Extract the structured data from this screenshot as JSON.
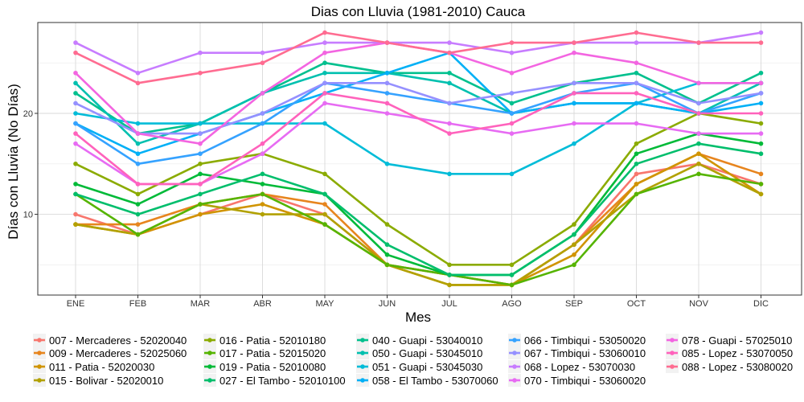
{
  "chart_data": {
    "type": "line",
    "title": "Dias con Lluvia (1981-2010)  Cauca",
    "xlabel": "Mes",
    "ylabel": "Días con Lluvia (No Días)",
    "categories": [
      "ENE",
      "FEB",
      "MAR",
      "ABR",
      "MAY",
      "JUN",
      "JUL",
      "AGO",
      "SEP",
      "OCT",
      "NOV",
      "DIC"
    ],
    "y_ticks": [
      10,
      20
    ],
    "ylim": [
      2,
      29
    ],
    "grid": true,
    "legend_position": "bottom",
    "series": [
      {
        "name": "007 - Mercaderes - 52020040",
        "color": "#F8766D",
        "values": [
          10,
          8,
          10,
          12,
          10,
          5,
          4,
          3,
          7,
          14,
          15,
          13
        ]
      },
      {
        "name": "009 - Mercaderes - 52025060",
        "color": "#E7851E",
        "values": [
          9,
          9,
          11,
          12,
          11,
          5,
          4,
          3,
          7,
          13,
          16,
          14
        ]
      },
      {
        "name": "011 - Patia - 52020030",
        "color": "#D09400",
        "values": [
          9,
          8,
          10,
          11,
          9,
          5,
          3,
          3,
          6,
          13,
          16,
          12
        ]
      },
      {
        "name": "015 - Bolivar - 52020010",
        "color": "#B2A100",
        "values": [
          9,
          8,
          11,
          10,
          10,
          5,
          3,
          3,
          7,
          12,
          15,
          12
        ]
      },
      {
        "name": "016 - Patia - 52010180",
        "color": "#8BAB00",
        "values": [
          15,
          12,
          15,
          16,
          14,
          9,
          5,
          5,
          9,
          17,
          20,
          19
        ]
      },
      {
        "name": "017 - Patia - 52015020",
        "color": "#55B400",
        "values": [
          12,
          8,
          11,
          12,
          9,
          5,
          4,
          3,
          5,
          12,
          14,
          13
        ]
      },
      {
        "name": "019 - Patia - 52010080",
        "color": "#00BA38",
        "values": [
          13,
          11,
          14,
          13,
          12,
          6,
          4,
          4,
          8,
          16,
          18,
          17
        ]
      },
      {
        "name": "027 - El Tambo - 52010100",
        "color": "#00BE6C",
        "values": [
          12,
          10,
          12,
          14,
          12,
          7,
          4,
          4,
          8,
          15,
          17,
          16
        ]
      },
      {
        "name": "040 - Guapi - 53040010",
        "color": "#00C08E",
        "values": [
          22,
          18,
          19,
          22,
          25,
          24,
          24,
          21,
          23,
          24,
          21,
          24
        ]
      },
      {
        "name": "050 - Guapi - 53045010",
        "color": "#00C0AF",
        "values": [
          23,
          17,
          19,
          22,
          24,
          24,
          23,
          20,
          21,
          21,
          20,
          23
        ]
      },
      {
        "name": "051 - Guapi - 53045030",
        "color": "#00BCD8",
        "values": [
          20,
          19,
          19,
          19,
          19,
          15,
          14,
          14,
          17,
          21,
          23,
          23
        ]
      },
      {
        "name": "058 - El Tambo - 53070060",
        "color": "#00B0F6",
        "values": [
          19,
          16,
          18,
          20,
          22,
          24,
          26,
          20,
          21,
          21,
          20,
          21
        ]
      },
      {
        "name": "066 - Timbiqui - 53050020",
        "color": "#35A2FF",
        "values": [
          19,
          15,
          16,
          19,
          23,
          22,
          21,
          20,
          22,
          23,
          20,
          22
        ]
      },
      {
        "name": "067 - Timbiqui - 53060010",
        "color": "#9590FF",
        "values": [
          21,
          18,
          18,
          20,
          23,
          23,
          21,
          22,
          23,
          23,
          21,
          22
        ]
      },
      {
        "name": "068 - Lopez - 53070030",
        "color": "#C77CFF",
        "values": [
          27,
          24,
          26,
          26,
          27,
          27,
          27,
          26,
          27,
          27,
          27,
          28
        ]
      },
      {
        "name": "070 - Timbiqui - 53060020",
        "color": "#E76BF3",
        "values": [
          17,
          13,
          13,
          16,
          21,
          20,
          19,
          18,
          19,
          19,
          18,
          18
        ]
      },
      {
        "name": "078 - Guapi - 57025010",
        "color": "#F365E1",
        "values": [
          24,
          18,
          17,
          22,
          26,
          27,
          26,
          24,
          26,
          25,
          23,
          23
        ]
      },
      {
        "name": "085 - Lopez - 53070050",
        "color": "#FF62BC",
        "values": [
          18,
          13,
          13,
          17,
          22,
          21,
          18,
          19,
          22,
          22,
          20,
          20
        ]
      },
      {
        "name": "088 - Lopez - 53080020",
        "color": "#FF6C91",
        "values": [
          26,
          23,
          24,
          25,
          28,
          27,
          26,
          27,
          27,
          28,
          27,
          27
        ]
      }
    ]
  }
}
